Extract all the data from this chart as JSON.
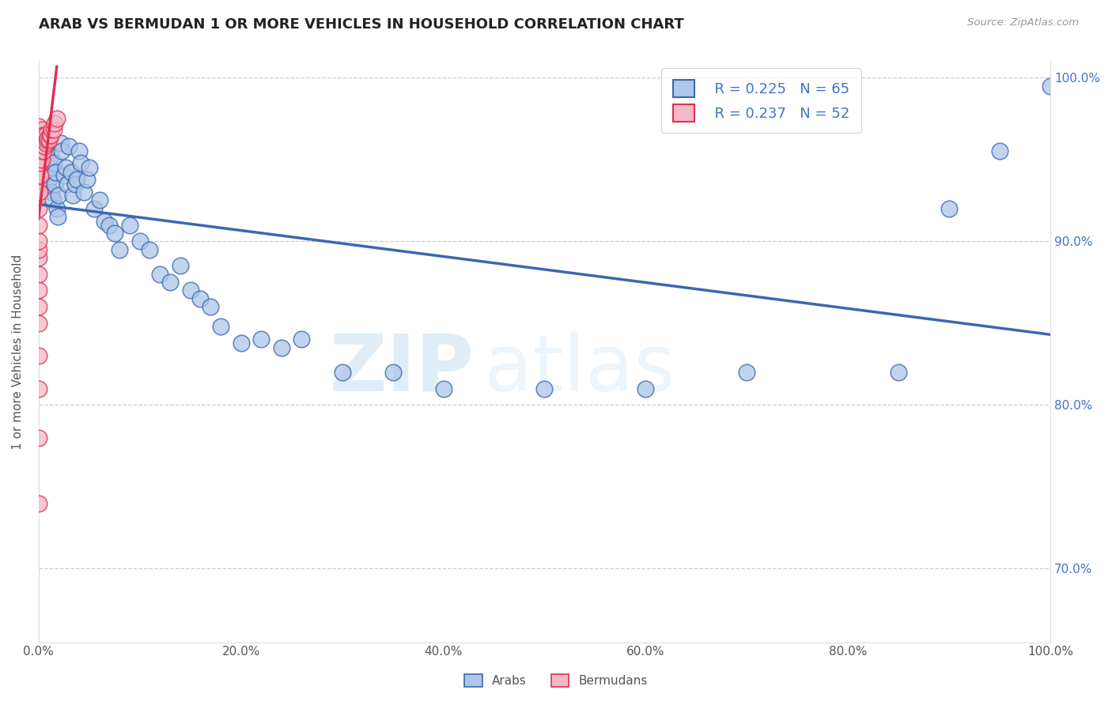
{
  "title": "ARAB VS BERMUDAN 1 OR MORE VEHICLES IN HOUSEHOLD CORRELATION CHART",
  "source": "Source: ZipAtlas.com",
  "ylabel": "1 or more Vehicles in Household",
  "legend_labels": [
    "Arabs",
    "Bermudans"
  ],
  "legend_r_arab": "R = 0.225",
  "legend_n_arab": "N = 65",
  "legend_r_bermudan": "R = 0.237",
  "legend_n_bermudan": "N = 52",
  "arab_color": "#aec6e8",
  "bermudan_color": "#f5b8c8",
  "trendline_arab_color": "#3a68b0",
  "trendline_bermudan_color": "#e03050",
  "arab_x": [
    0.001,
    0.002,
    0.003,
    0.004,
    0.005,
    0.006,
    0.007,
    0.008,
    0.009,
    0.01,
    0.011,
    0.012,
    0.013,
    0.014,
    0.015,
    0.016,
    0.017,
    0.018,
    0.019,
    0.02,
    0.022,
    0.023,
    0.025,
    0.027,
    0.028,
    0.03,
    0.032,
    0.034,
    0.036,
    0.038,
    0.04,
    0.042,
    0.045,
    0.048,
    0.05,
    0.055,
    0.06,
    0.065,
    0.07,
    0.075,
    0.08,
    0.09,
    0.1,
    0.11,
    0.12,
    0.13,
    0.14,
    0.15,
    0.16,
    0.17,
    0.18,
    0.2,
    0.22,
    0.24,
    0.26,
    0.3,
    0.35,
    0.4,
    0.5,
    0.6,
    0.7,
    0.85,
    0.9,
    0.95,
    1.0
  ],
  "arab_y": [
    0.955,
    0.96,
    0.945,
    0.965,
    0.95,
    0.94,
    0.935,
    0.955,
    0.948,
    0.938,
    0.945,
    0.952,
    0.93,
    0.925,
    0.948,
    0.935,
    0.942,
    0.92,
    0.915,
    0.928,
    0.96,
    0.955,
    0.94,
    0.945,
    0.935,
    0.958,
    0.942,
    0.928,
    0.935,
    0.938,
    0.955,
    0.948,
    0.93,
    0.938,
    0.945,
    0.92,
    0.925,
    0.912,
    0.91,
    0.905,
    0.895,
    0.91,
    0.9,
    0.895,
    0.88,
    0.875,
    0.885,
    0.87,
    0.865,
    0.86,
    0.848,
    0.838,
    0.84,
    0.835,
    0.84,
    0.82,
    0.82,
    0.81,
    0.81,
    0.81,
    0.82,
    0.82,
    0.92,
    0.955,
    0.995
  ],
  "bermudan_x": [
    0.0,
    0.0,
    0.0,
    0.0,
    0.0,
    0.0,
    0.0,
    0.0,
    0.0,
    0.0,
    0.0,
    0.0,
    0.0,
    0.0,
    0.0,
    0.0,
    0.0,
    0.0,
    0.0,
    0.0,
    0.001,
    0.001,
    0.001,
    0.001,
    0.001,
    0.001,
    0.002,
    0.002,
    0.002,
    0.002,
    0.002,
    0.003,
    0.003,
    0.003,
    0.004,
    0.004,
    0.004,
    0.005,
    0.005,
    0.006,
    0.006,
    0.007,
    0.007,
    0.008,
    0.009,
    0.01,
    0.011,
    0.012,
    0.013,
    0.015,
    0.016,
    0.018
  ],
  "bermudan_y": [
    0.74,
    0.78,
    0.81,
    0.83,
    0.85,
    0.86,
    0.87,
    0.88,
    0.89,
    0.895,
    0.9,
    0.91,
    0.92,
    0.93,
    0.94,
    0.945,
    0.95,
    0.955,
    0.96,
    0.97,
    0.93,
    0.94,
    0.95,
    0.955,
    0.96,
    0.965,
    0.94,
    0.948,
    0.955,
    0.96,
    0.965,
    0.95,
    0.958,
    0.965,
    0.955,
    0.96,
    0.968,
    0.955,
    0.965,
    0.958,
    0.962,
    0.96,
    0.965,
    0.962,
    0.963,
    0.962,
    0.965,
    0.965,
    0.968,
    0.968,
    0.972,
    0.975
  ],
  "watermark_zip": "ZIP",
  "watermark_atlas": "atlas",
  "background_color": "#ffffff",
  "grid_color": "#cccccc",
  "xmin": 0.0,
  "xmax": 1.0,
  "ymin": 0.655,
  "ymax": 1.01,
  "ytick_vals": [
    0.7,
    0.8,
    0.9,
    1.0
  ],
  "xtick_vals": [
    0.0,
    0.2,
    0.4,
    0.6,
    0.8,
    1.0
  ]
}
